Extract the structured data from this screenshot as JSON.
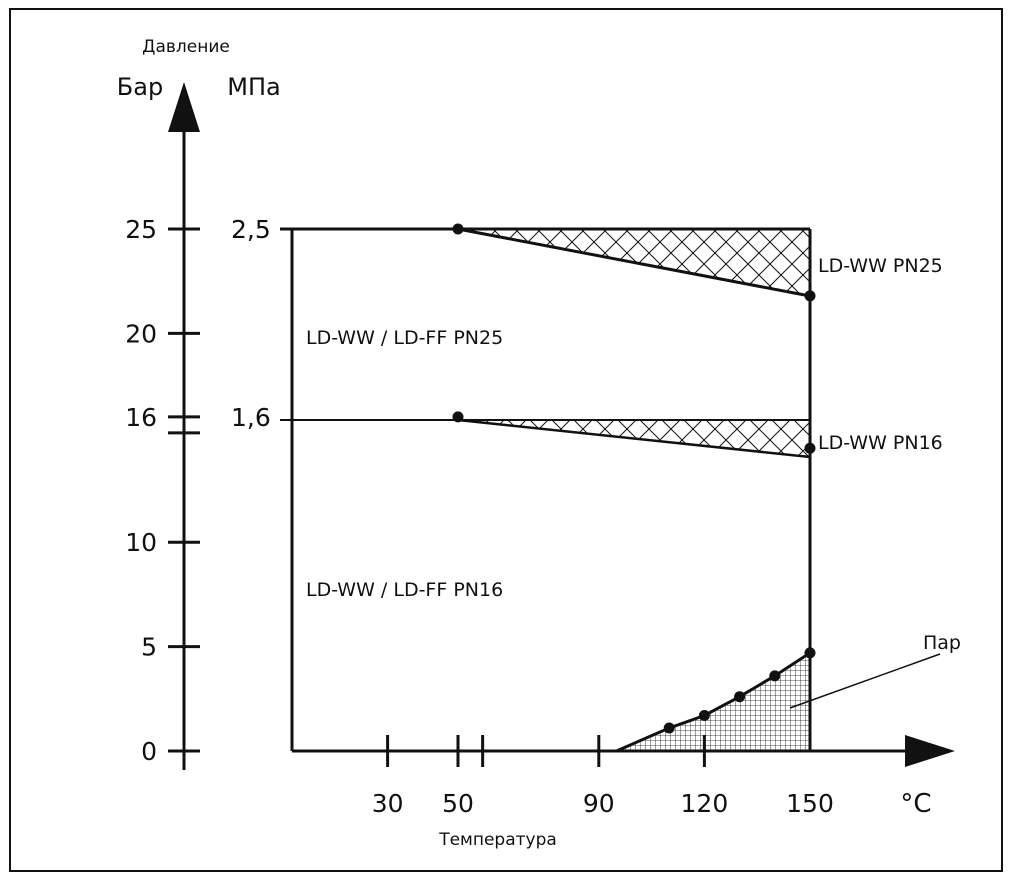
{
  "chart_data": {
    "type": "line",
    "y_axis": {
      "title": "Давление",
      "unit_bar": "Бар",
      "unit_mpa": "МПа",
      "ticks_bar": [
        "0",
        "5",
        "10",
        "16",
        "20",
        "25"
      ],
      "ticks_mpa": [
        {
          "bar": 16,
          "label": "1,6"
        },
        {
          "bar": 25,
          "label": "2,5"
        }
      ],
      "ylim": [
        0,
        25
      ]
    },
    "x_axis": {
      "title": "Температура",
      "unit": "°C",
      "tick_labels": [
        "30",
        "50",
        "90",
        "120",
        "150"
      ],
      "tick_marks": [
        30,
        50,
        57,
        90,
        120
      ],
      "xlim": [
        -10,
        150
      ]
    },
    "series": [
      {
        "x": [
          -10,
          50,
          150
        ],
        "y": [
          25,
          25,
          21.8
        ]
      },
      {
        "x": [
          -10,
          50,
          150
        ],
        "y": [
          16,
          16,
          14.5
        ]
      },
      {
        "x": [
          95,
          110,
          120,
          130,
          140,
          150
        ],
        "y": [
          0,
          1.1,
          1.7,
          2.6,
          3.6,
          4.7
        ]
      }
    ],
    "points": [
      {
        "x": 50,
        "y": 25
      },
      {
        "x": 150,
        "y": 21.8
      },
      {
        "x": 50,
        "y": 16
      },
      {
        "x": 150,
        "y": 14.5
      },
      {
        "x": 110,
        "y": 1.1
      },
      {
        "x": 120,
        "y": 1.7
      },
      {
        "x": 130,
        "y": 2.6
      },
      {
        "x": 140,
        "y": 3.6
      },
      {
        "x": 150,
        "y": 4.7
      }
    ],
    "regions": [
      {
        "label": "LD-WW / LD-FF PN25"
      },
      {
        "label": "LD-WW / LD-FF PN16"
      },
      {
        "label": "LD-WW PN25"
      },
      {
        "label": "LD-WW PN16"
      },
      {
        "label": "Пар"
      }
    ],
    "grid": false
  }
}
